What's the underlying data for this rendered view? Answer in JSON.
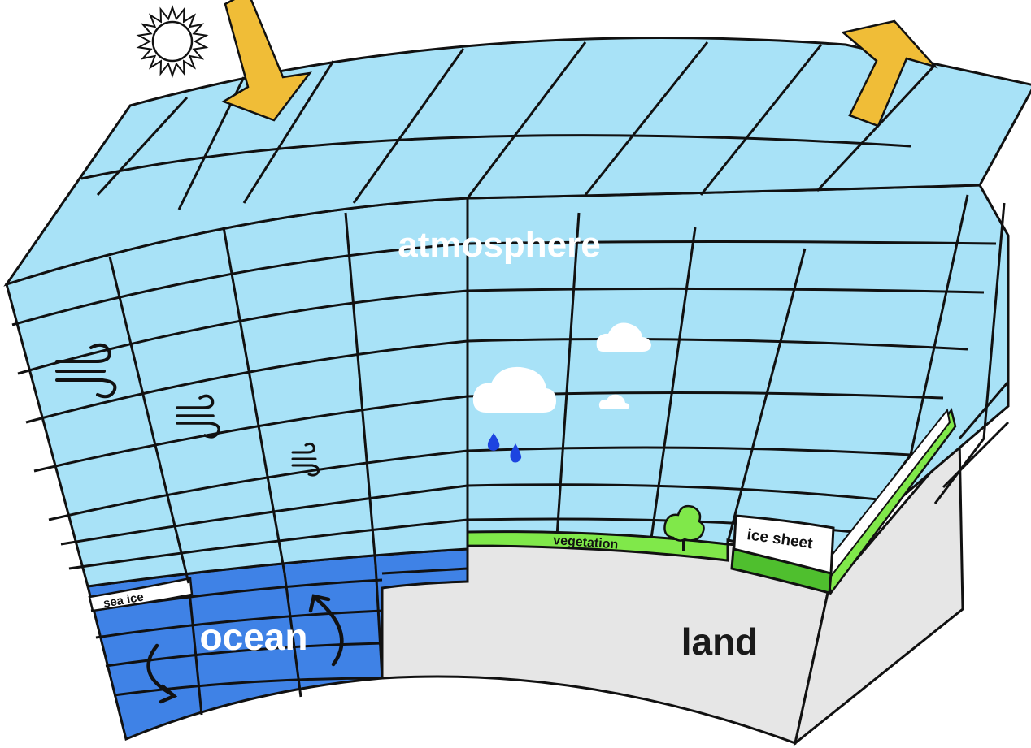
{
  "labels": {
    "atmosphere": "atmosphere",
    "ocean": "ocean",
    "land": "land",
    "sea_ice": "sea ice",
    "vegetation": "vegetation",
    "ice_sheet": "ice sheet"
  },
  "icons": {
    "sun": "sun-icon",
    "incoming_arrow": "incoming-arrow-icon",
    "outgoing_arrow": "outgoing-arrow-icon",
    "wind": "wind-icon",
    "cloud": "cloud-icon",
    "raindrop": "raindrop-icon",
    "tree": "tree-icon",
    "circulation_arrow": "circulation-arrow-icon"
  },
  "colors": {
    "atmosphere": "#a8e2f7",
    "ocean": "#3f82e6",
    "land": "#e6e6e6",
    "vegetation": "#80e84a",
    "vegetation_dark": "#4fbf2e",
    "arrow": "#f0bd37",
    "cloud": "#ffffff",
    "raindrop": "#1d44e0",
    "grid_line": "#111111"
  }
}
